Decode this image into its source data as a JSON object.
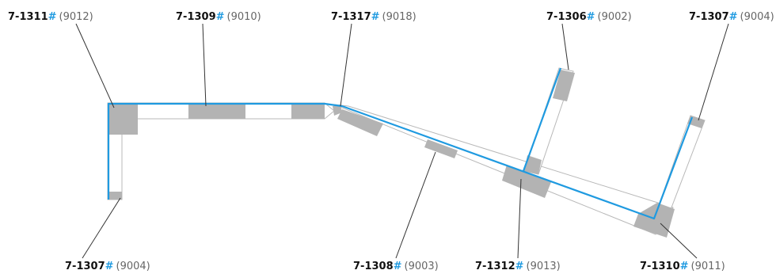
{
  "colors": {
    "route": "#1f9ae0",
    "hash": "#1f9ae0",
    "block": "#b3b3b3",
    "outline": "#b8b8b8",
    "leader": "#333333",
    "code_text": "#111111",
    "id_text": "#666666"
  },
  "labels": [
    {
      "code": "7-1311",
      "hash": "#",
      "id": "(9012)"
    },
    {
      "code": "7-1309",
      "hash": "#",
      "id": "(9010)"
    },
    {
      "code": "7-1317",
      "hash": "#",
      "id": "(9018)"
    },
    {
      "code": "7-1306",
      "hash": "#",
      "id": "(9002)"
    },
    {
      "code": "7-1307",
      "hash": "#",
      "id": "(9004)"
    },
    {
      "code": "7-1307",
      "hash": "#",
      "id": "(9004)"
    },
    {
      "code": "7-1308",
      "hash": "#",
      "id": "(9003)"
    },
    {
      "code": "7-1312",
      "hash": "#",
      "id": "(9013)"
    },
    {
      "code": "7-1310",
      "hash": "#",
      "id": "(9011)"
    }
  ]
}
